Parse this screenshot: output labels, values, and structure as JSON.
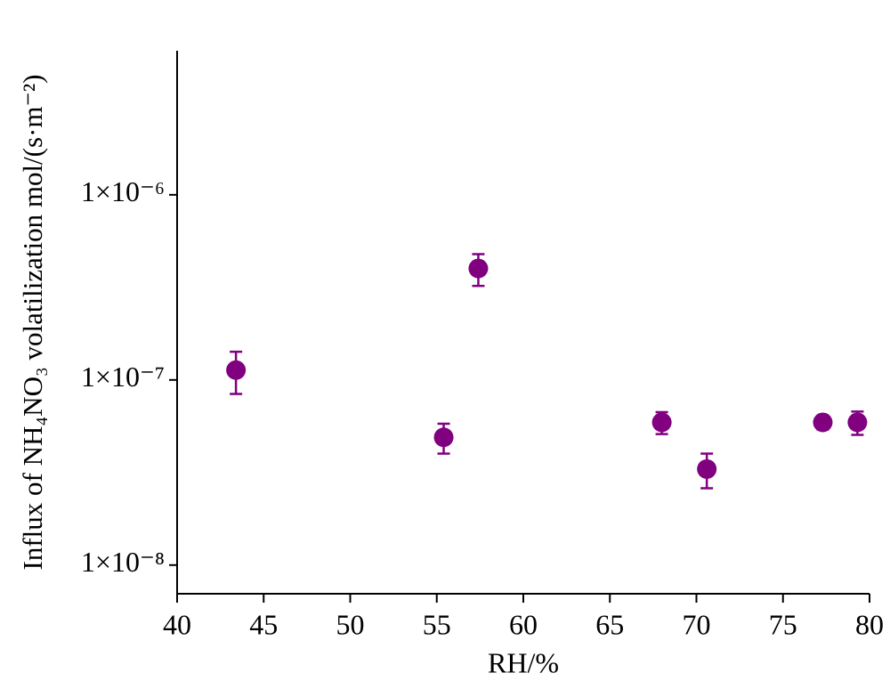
{
  "chart_data": {
    "type": "scatter",
    "xlabel": "RH/%",
    "ylabel": "Influx of NH₄NO₃ volatilization mol/(s·m⁻²)",
    "x": [
      43.4,
      55.4,
      57.4,
      68.0,
      70.6,
      77.3,
      79.3
    ],
    "series": [
      {
        "color": "#800080",
        "values": [
          1.13e-07,
          4.9e-08,
          4e-07,
          5.9e-08,
          3.3e-08,
          5.9e-08,
          5.9e-08
        ],
        "errors": [
          2.9e-08,
          9e-09,
          7.8e-08,
          8e-09,
          7e-09,
          5e-09,
          8.5e-09
        ]
      }
    ],
    "xlim": [
      40,
      80
    ],
    "xticks": [
      40,
      45,
      50,
      55,
      60,
      65,
      70,
      75,
      80
    ],
    "ylim": [
      7e-09,
      6e-06
    ],
    "ylog": true,
    "yticks": [
      {
        "value": 1e-08,
        "label": "1×10⁻⁸"
      },
      {
        "value": 1e-07,
        "label": "1×10⁻⁷"
      },
      {
        "value": 1e-06,
        "label": "1×10⁻⁶"
      }
    ]
  }
}
